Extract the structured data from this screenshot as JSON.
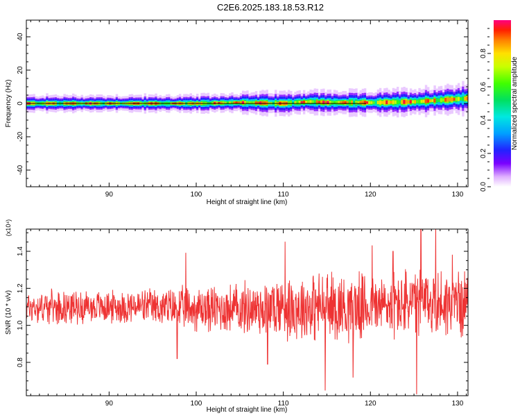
{
  "page": {
    "title": "C2E6.2025.183.18.53.R12"
  },
  "chart_data": [
    {
      "type": "heatmap",
      "xlabel": "Height of straight line (km)",
      "ylabel": "Frequency (Hz)",
      "xlim": [
        80.5,
        131.2
      ],
      "ylim": [
        -50,
        50
      ],
      "xticks": [
        90,
        100,
        110,
        120,
        130
      ],
      "yticks": [
        -40,
        -20,
        0,
        20,
        40
      ],
      "colorbar": {
        "label": "Normalized spectral amplitude",
        "range": [
          0,
          1
        ],
        "ticks": [
          0.0,
          0.2,
          0.4,
          0.6,
          0.8
        ],
        "colormap": "rainbow"
      },
      "band_center_hz": [
        [
          81,
          0.0
        ],
        [
          85,
          0.0
        ],
        [
          90,
          0.0
        ],
        [
          95,
          0.0
        ],
        [
          100,
          0.0
        ],
        [
          105,
          0.5
        ],
        [
          110,
          0.0
        ],
        [
          113,
          1.0
        ],
        [
          115,
          0.5
        ],
        [
          120,
          0.5
        ],
        [
          125,
          1.0
        ],
        [
          128,
          2.0
        ],
        [
          131,
          3.0
        ]
      ],
      "band_halfwidth_hz": [
        [
          81,
          2.5
        ],
        [
          90,
          2.5
        ],
        [
          100,
          2.5
        ],
        [
          105,
          3.0
        ],
        [
          110,
          3.5
        ],
        [
          120,
          3.5
        ],
        [
          125,
          4.0
        ],
        [
          131,
          4.5
        ]
      ],
      "reference_line_hz": 0,
      "grid": false
    },
    {
      "type": "line",
      "xlabel": "Height of straight line (km)",
      "ylabel": "SNR (10 * v/v)",
      "y_multiplier": "(x10⁴)",
      "xlim": [
        80.5,
        131.2
      ],
      "ylim": [
        0.62,
        1.52
      ],
      "xticks": [
        90,
        100,
        110,
        120,
        130
      ],
      "yticks": [
        0.8,
        1.0,
        1.2,
        1.4
      ],
      "series_color": "#ee3333",
      "series": [
        {
          "name": "",
          "envelope": [
            [
              81,
              1.1,
              0.1
            ],
            [
              85,
              1.1,
              0.1
            ],
            [
              90,
              1.1,
              0.1
            ],
            [
              95,
              1.1,
              0.11
            ],
            [
              98,
              1.09,
              0.13
            ],
            [
              100,
              1.09,
              0.14
            ],
            [
              105,
              1.09,
              0.16
            ],
            [
              110,
              1.1,
              0.2
            ],
            [
              115,
              1.1,
              0.22
            ],
            [
              120,
              1.1,
              0.2
            ],
            [
              125,
              1.12,
              0.22
            ],
            [
              131,
              1.12,
              0.2
            ]
          ],
          "peaks": [
            [
              98.8,
              1.39
            ],
            [
              110.2,
              1.45
            ],
            [
              114.8,
              0.65
            ],
            [
              120.2,
              1.43
            ],
            [
              125.3,
              0.63
            ],
            [
              125.8,
              1.52
            ],
            [
              127.5,
              1.52
            ],
            [
              122.6,
              1.4
            ],
            [
              97.8,
              0.82
            ],
            [
              108.2,
              0.79
            ],
            [
              118.0,
              0.72
            ],
            [
              129.4,
              1.38
            ]
          ]
        }
      ],
      "grid": false
    }
  ]
}
